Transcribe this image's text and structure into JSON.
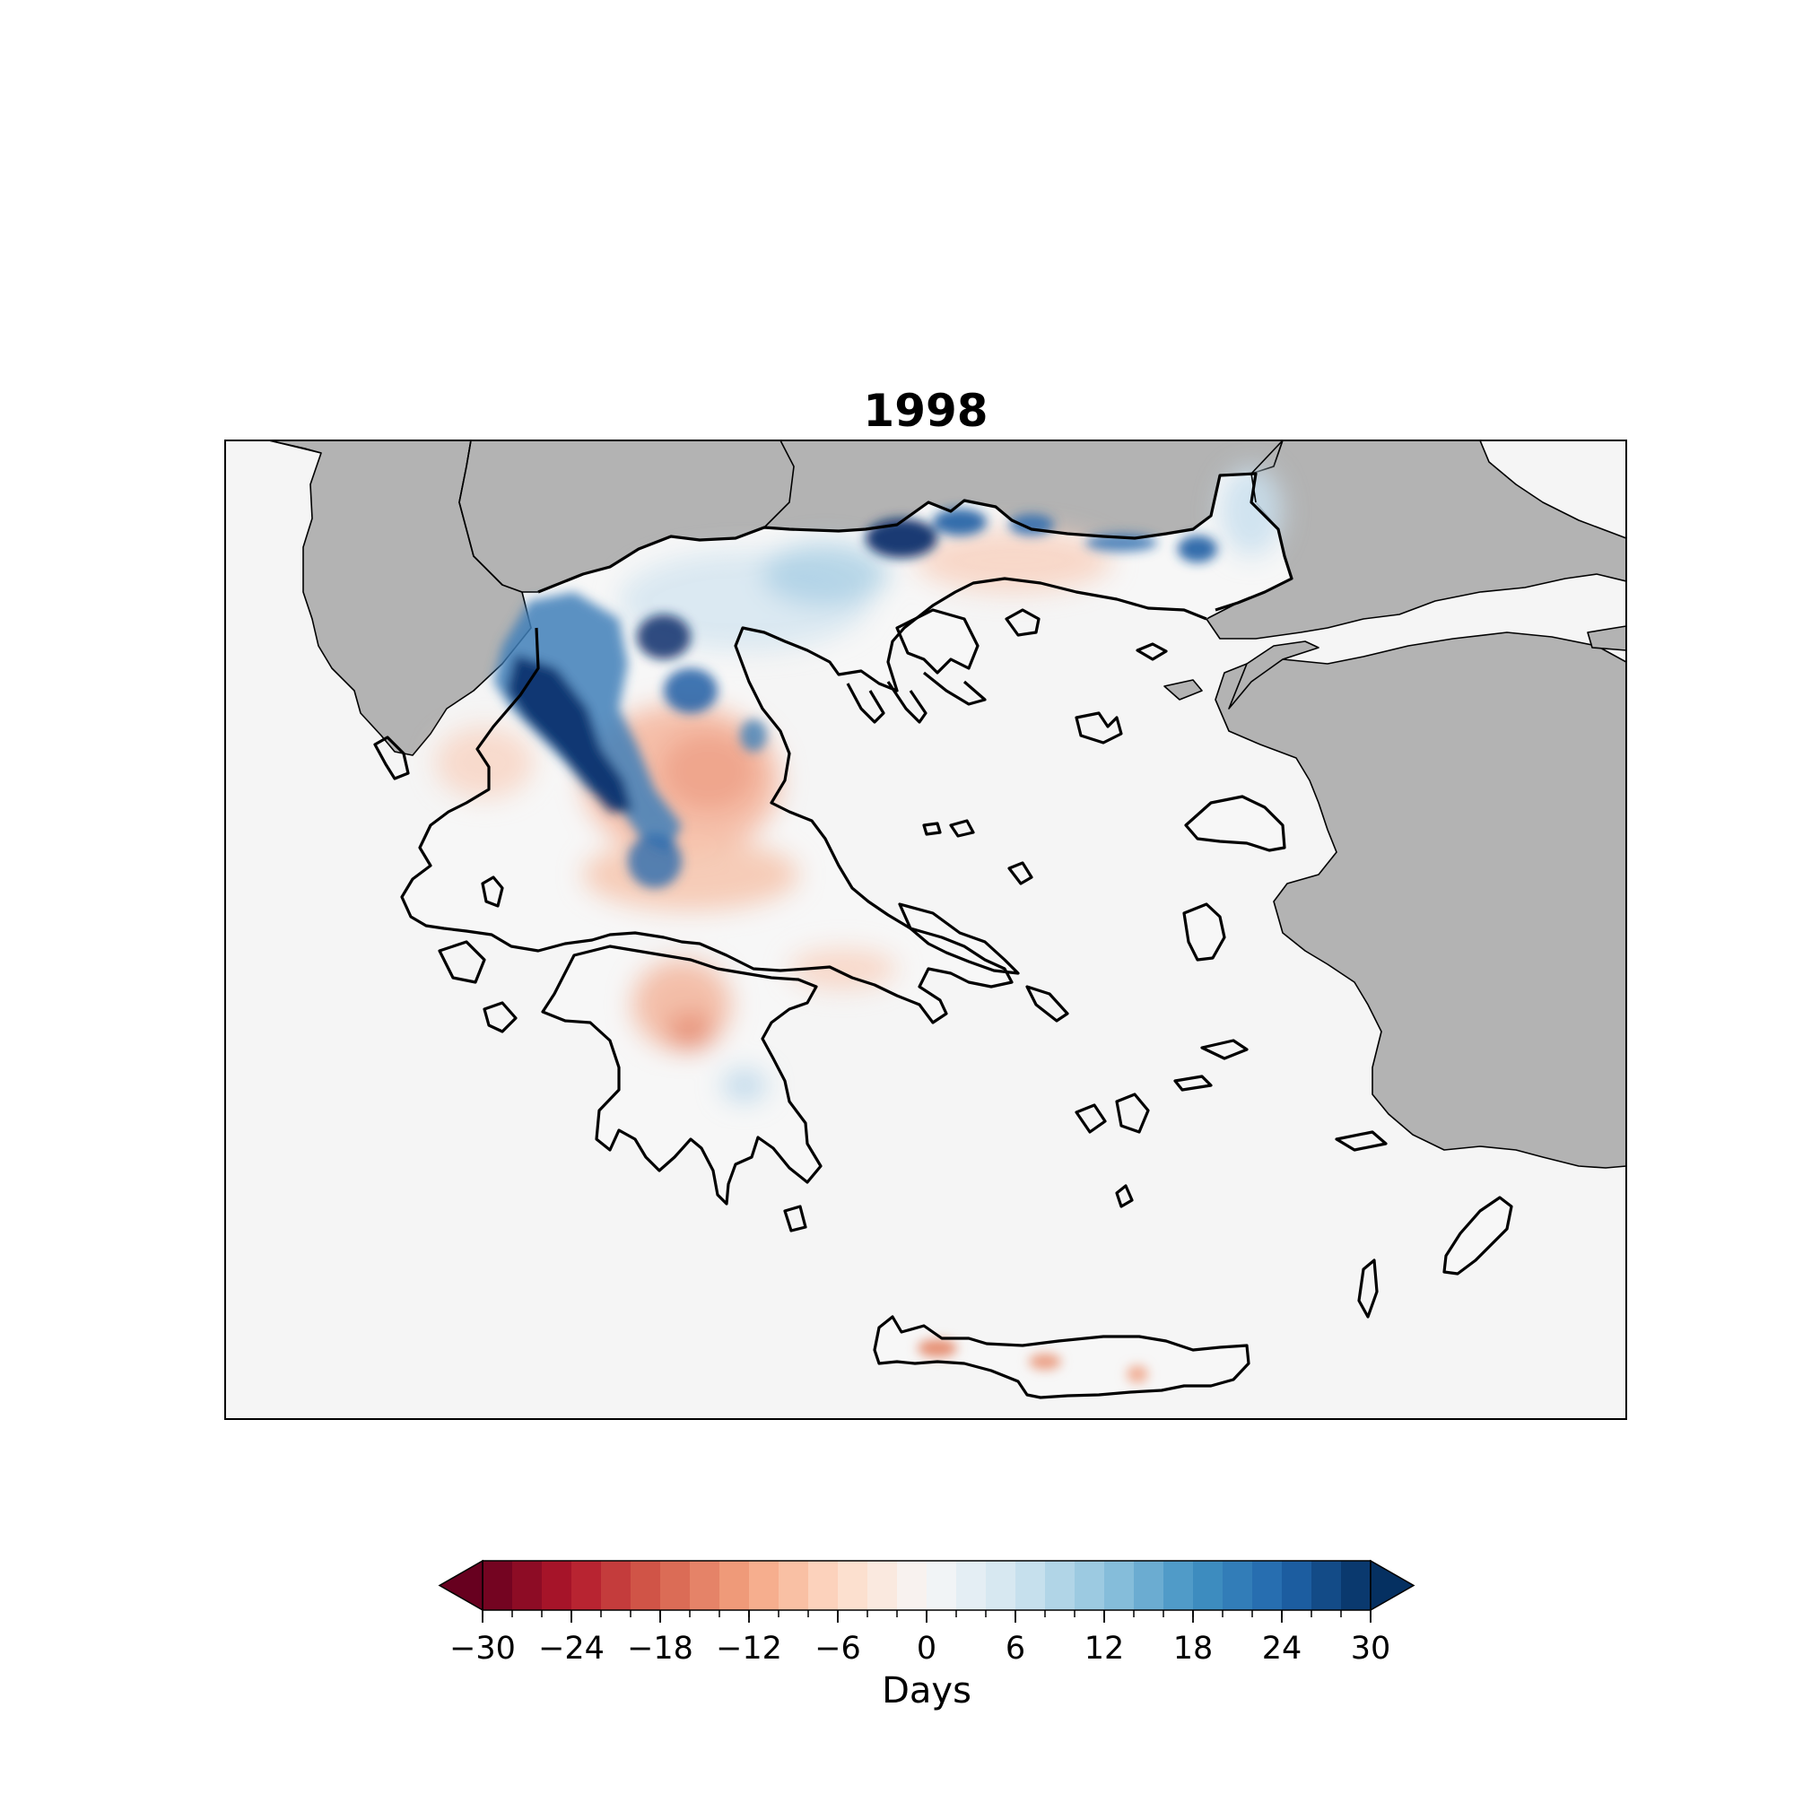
{
  "map": {
    "title": "1998",
    "land_color_outside": "#b3b3b3",
    "sea_color": "#f5f5f5",
    "colormap": "RdBu",
    "anomaly_patches": [
      {
        "region": "Pindus mountains (north-west)",
        "value": 26
      },
      {
        "region": "Eastern Macedonia / Thrace border",
        "value": 28
      },
      {
        "region": "Evros (far north-east)",
        "value": 20
      },
      {
        "region": "Thessaly plain",
        "value": -6
      },
      {
        "region": "Central Macedonia",
        "value": 6
      },
      {
        "region": "Peloponnese (north)",
        "value": -8
      },
      {
        "region": "Crete (west)",
        "value": -10
      },
      {
        "region": "Crete (central)",
        "value": -9
      },
      {
        "region": "Crete (east)",
        "value": -6
      }
    ]
  },
  "colorbar": {
    "label": "Days",
    "min": -30,
    "max": 30,
    "step": 2,
    "extend": "both",
    "ticks": [
      "−30",
      "−24",
      "−18",
      "−12",
      "−6",
      "0",
      "6",
      "12",
      "18",
      "24",
      "30"
    ],
    "tick_values": [
      -30,
      -24,
      -18,
      -12,
      -6,
      0,
      6,
      12,
      18,
      24,
      30
    ]
  }
}
